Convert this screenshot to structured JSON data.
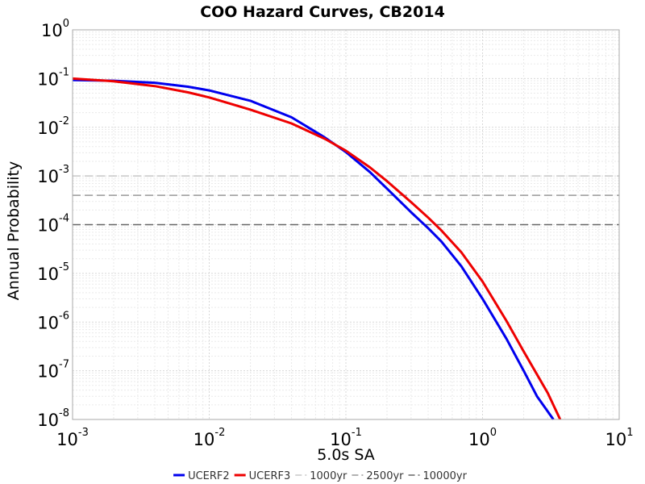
{
  "chart_data": {
    "type": "line",
    "title": "COO Hazard Curves, CB2014",
    "xlabel": "5.0s SA",
    "ylabel": "Annual Probability",
    "x_scale": "log",
    "y_scale": "log",
    "xlim": [
      0.001,
      10
    ],
    "ylim": [
      1e-08,
      1
    ],
    "grid": true,
    "legend_placement": "bottom-center",
    "x_ticks": [
      {
        "base": "10",
        "exp": "-3"
      },
      {
        "base": "10",
        "exp": "-2"
      },
      {
        "base": "10",
        "exp": "-1"
      },
      {
        "base": "10",
        "exp": "0"
      },
      {
        "base": "10",
        "exp": "1"
      }
    ],
    "y_ticks": [
      {
        "base": "10",
        "exp": "0"
      },
      {
        "base": "10",
        "exp": "-1"
      },
      {
        "base": "10",
        "exp": "-2"
      },
      {
        "base": "10",
        "exp": "-3"
      },
      {
        "base": "10",
        "exp": "-4"
      },
      {
        "base": "10",
        "exp": "-5"
      },
      {
        "base": "10",
        "exp": "-6"
      },
      {
        "base": "10",
        "exp": "-7"
      },
      {
        "base": "10",
        "exp": "-8"
      }
    ],
    "series": [
      {
        "name": "UCERF2",
        "color": "#0000ee",
        "points": [
          [
            0.001,
            0.093
          ],
          [
            0.002,
            0.09
          ],
          [
            0.004,
            0.082
          ],
          [
            0.007,
            0.068
          ],
          [
            0.01,
            0.057
          ],
          [
            0.02,
            0.035
          ],
          [
            0.04,
            0.016
          ],
          [
            0.07,
            0.0062
          ],
          [
            0.1,
            0.0031
          ],
          [
            0.15,
            0.0012
          ],
          [
            0.2,
            0.00055
          ],
          [
            0.3,
            0.00018
          ],
          [
            0.4,
            8.5e-05
          ],
          [
            0.5,
            4.5e-05
          ],
          [
            0.7,
            1.4e-05
          ],
          [
            1.0,
            3e-06
          ],
          [
            1.5,
            4.5e-07
          ],
          [
            2.0,
            1e-07
          ],
          [
            2.5,
            3e-08
          ],
          [
            3.3,
            1e-08
          ]
        ]
      },
      {
        "name": "UCERF3",
        "color": "#ee0000",
        "points": [
          [
            0.001,
            0.1
          ],
          [
            0.002,
            0.088
          ],
          [
            0.004,
            0.07
          ],
          [
            0.007,
            0.052
          ],
          [
            0.01,
            0.041
          ],
          [
            0.02,
            0.023
          ],
          [
            0.04,
            0.012
          ],
          [
            0.07,
            0.0058
          ],
          [
            0.1,
            0.0033
          ],
          [
            0.15,
            0.0015
          ],
          [
            0.2,
            0.00078
          ],
          [
            0.3,
            0.00029
          ],
          [
            0.4,
            0.00014
          ],
          [
            0.5,
            7.6e-05
          ],
          [
            0.7,
            2.7e-05
          ],
          [
            1.0,
            6.8e-06
          ],
          [
            1.5,
            1.05e-06
          ],
          [
            2.0,
            2.5e-07
          ],
          [
            3.0,
            3.5e-08
          ],
          [
            3.7,
            1e-08
          ]
        ]
      }
    ],
    "reference_lines": [
      {
        "name": "1000yr",
        "y": 0.001,
        "color": "#c8c8c8"
      },
      {
        "name": "2500yr",
        "y": 0.0004,
        "color": "#999999"
      },
      {
        "name": "10000yr",
        "y": 0.0001,
        "color": "#666666"
      }
    ]
  }
}
